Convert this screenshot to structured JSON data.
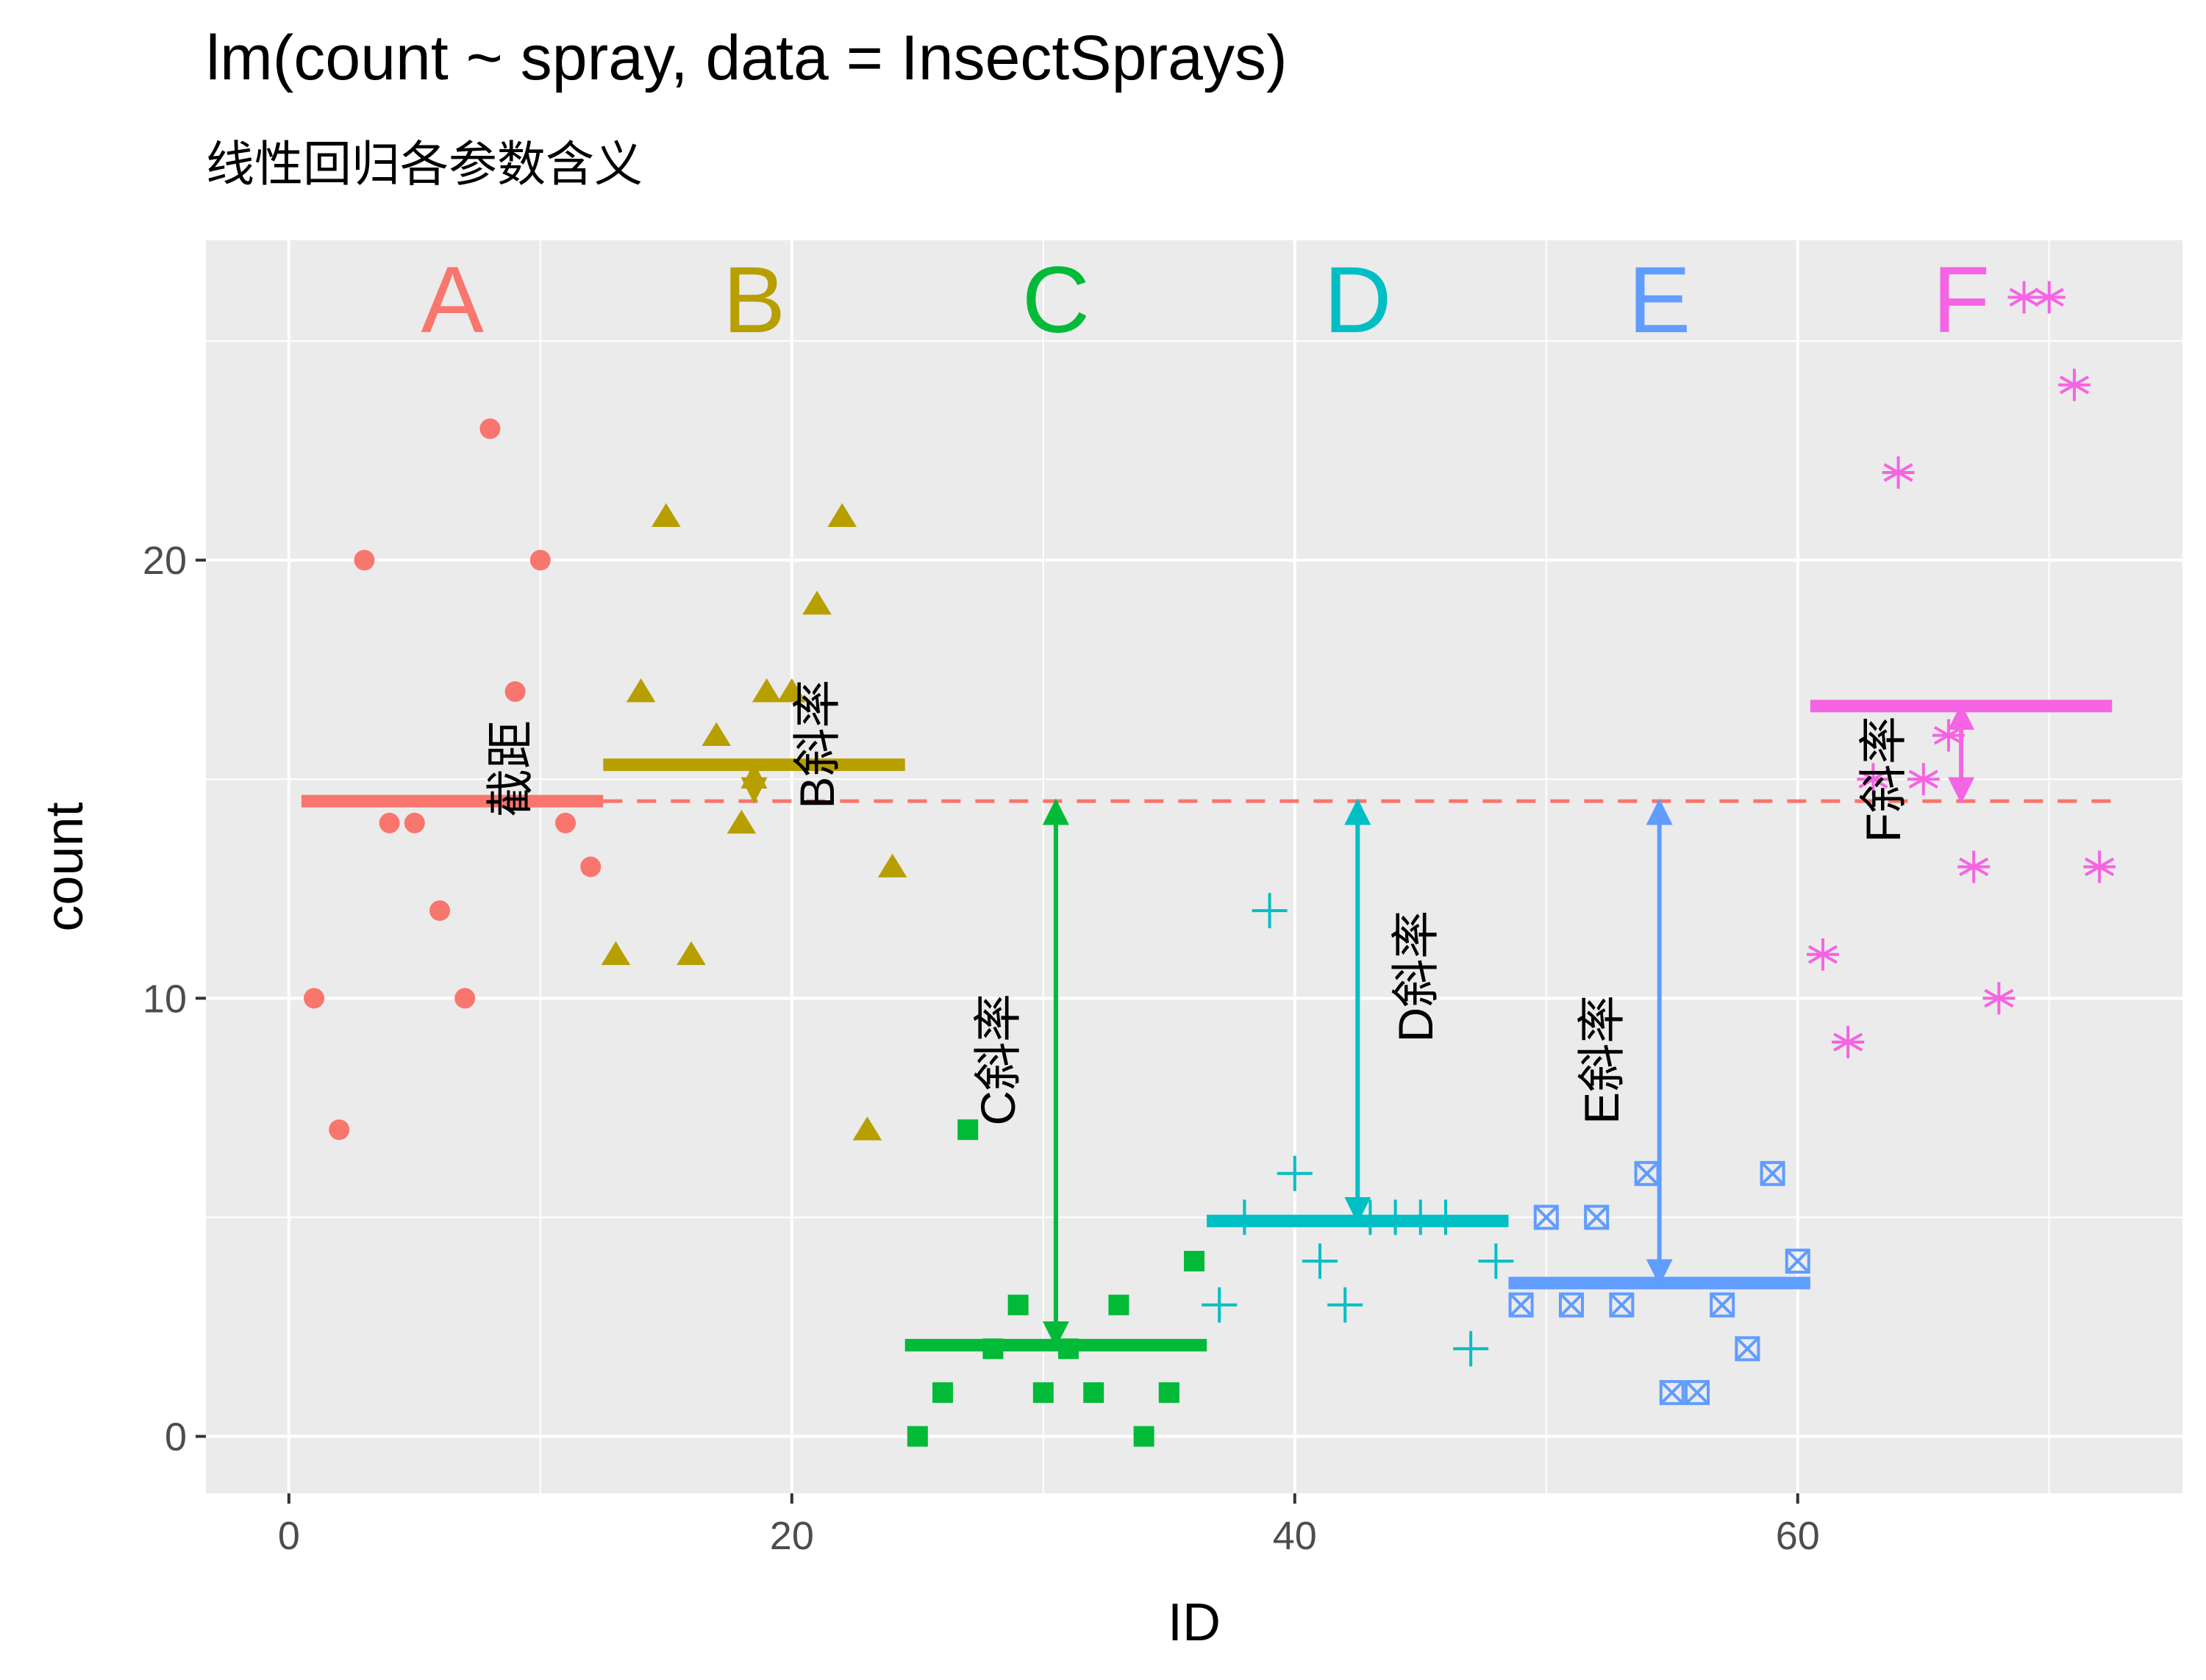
{
  "chart": {
    "title": "lm(count ~ spray, data = InsectSprays)",
    "subtitle": "线性回归各参数含义",
    "xlabel": "ID",
    "ylabel": "count"
  },
  "chart_data": {
    "type": "scatter",
    "title": "lm(count ~ spray, data = InsectSprays)",
    "subtitle": "线性回归各参数含义",
    "xlabel": "ID",
    "ylabel": "count",
    "xlim": [
      -3.3,
      75.3
    ],
    "ylim": [
      -1.3,
      27.3
    ],
    "x_ticks": [
      0,
      20,
      40,
      60
    ],
    "y_ticks": [
      0,
      10,
      20
    ],
    "grid": true,
    "legend": "none",
    "intercept": 14.5,
    "intercept_label": "截距",
    "series": [
      {
        "name": "A",
        "color": "#F8766D",
        "shape": "circle",
        "mean": 14.5,
        "x": [
          1,
          2,
          3,
          4,
          5,
          6,
          7,
          8,
          9,
          10,
          11,
          12
        ],
        "y": [
          10,
          7,
          20,
          14,
          14,
          12,
          10,
          23,
          17,
          20,
          14,
          13
        ],
        "mean_xrange": [
          0.5,
          12.5
        ],
        "label_x": 6.5
      },
      {
        "name": "B",
        "color": "#B79F00",
        "shape": "triangle",
        "mean": 15.33,
        "x": [
          13,
          14,
          15,
          16,
          17,
          18,
          19,
          20,
          21,
          22,
          23,
          24
        ],
        "y": [
          11,
          17,
          21,
          11,
          16,
          14,
          17,
          17,
          19,
          21,
          7,
          13
        ],
        "mean_xrange": [
          12.5,
          24.5
        ],
        "label_x": 18.5,
        "slope_label": "B斜率"
      },
      {
        "name": "C",
        "color": "#00BA38",
        "shape": "square",
        "mean": 2.083,
        "x": [
          25,
          26,
          27,
          28,
          29,
          30,
          31,
          32,
          33,
          34,
          35,
          36
        ],
        "y": [
          0,
          1,
          7,
          2,
          3,
          1,
          2,
          1,
          3,
          0,
          1,
          4
        ],
        "mean_xrange": [
          24.5,
          36.5
        ],
        "label_x": 30.5,
        "slope_label": "C斜率"
      },
      {
        "name": "D",
        "color": "#00BFC4",
        "shape": "plus",
        "mean": 4.917,
        "x": [
          37,
          38,
          39,
          40,
          41,
          42,
          43,
          44,
          45,
          46,
          47,
          48
        ],
        "y": [
          3,
          5,
          12,
          6,
          4,
          3,
          5,
          5,
          5,
          5,
          2,
          4
        ],
        "mean_xrange": [
          36.5,
          48.5
        ],
        "label_x": 42.5,
        "slope_label": "D斜率"
      },
      {
        "name": "E",
        "color": "#619CFF",
        "shape": "boxcross",
        "mean": 3.5,
        "x": [
          49,
          50,
          51,
          52,
          53,
          54,
          55,
          56,
          57,
          58,
          59,
          60
        ],
        "y": [
          3,
          5,
          3,
          5,
          3,
          6,
          1,
          1,
          3,
          2,
          6,
          4
        ],
        "mean_xrange": [
          48.5,
          60.5
        ],
        "label_x": 54.5,
        "slope_label": "E斜率"
      },
      {
        "name": "F",
        "color": "#F564E3",
        "shape": "asterisk",
        "mean": 16.67,
        "x": [
          61,
          62,
          63,
          64,
          65,
          66,
          67,
          68,
          69,
          70,
          71,
          72
        ],
        "y": [
          11,
          9,
          15,
          22,
          15,
          16,
          13,
          10,
          26,
          26,
          24,
          13
        ],
        "mean_xrange": [
          60.5,
          72.5
        ],
        "label_x": 66.5,
        "slope_label": "F斜率"
      }
    ]
  }
}
